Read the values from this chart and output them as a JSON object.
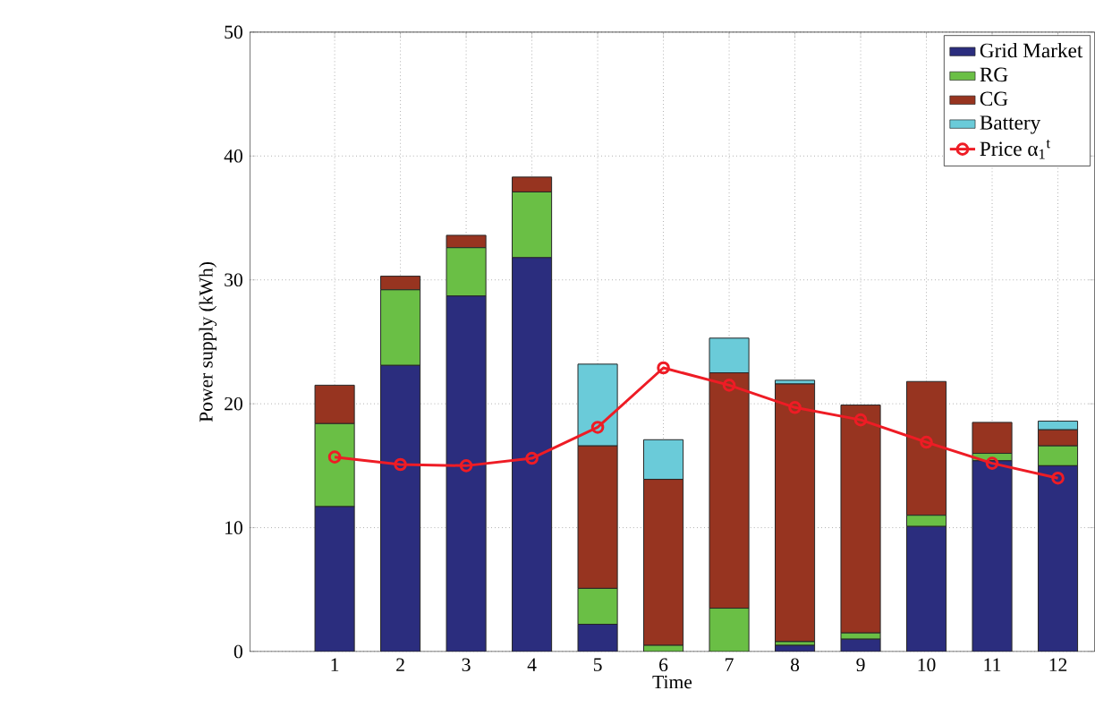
{
  "chart_data": {
    "type": "bar",
    "xlabel": "Time",
    "ylabel": "Power supply (kWh)",
    "categories": [
      "1",
      "2",
      "3",
      "4",
      "5",
      "6",
      "7",
      "8",
      "9",
      "10",
      "11",
      "12"
    ],
    "stacked": true,
    "ylim": [
      0,
      50
    ],
    "yticks": [
      0,
      10,
      20,
      30,
      40,
      50
    ],
    "grid": true,
    "legend": "top right",
    "series": [
      {
        "name": "Grid Market",
        "color": "#2b2d7e",
        "values": [
          11.7,
          23.1,
          28.7,
          31.8,
          2.2,
          0,
          0,
          0.5,
          1.0,
          10.1,
          15.4,
          15.0
        ]
      },
      {
        "name": "RG",
        "color": "#6abf45",
        "values": [
          6.7,
          6.1,
          3.9,
          5.3,
          2.9,
          0.5,
          3.5,
          0.3,
          0.5,
          0.9,
          0.6,
          1.6
        ]
      },
      {
        "name": "CG",
        "color": "#973420",
        "values": [
          3.1,
          1.1,
          1.0,
          1.2,
          11.5,
          13.4,
          19.0,
          20.8,
          18.4,
          10.8,
          2.5,
          1.3
        ]
      },
      {
        "name": "Battery",
        "color": "#6acbd9",
        "values": [
          0,
          0,
          0,
          0,
          6.6,
          3.2,
          2.8,
          0.3,
          0,
          0,
          0,
          0.7
        ]
      },
      {
        "name": "Price α$_{1}$$^{t}$",
        "type": "line",
        "color": "#ee1c25",
        "marker": "circle",
        "line_style": "solid",
        "values": [
          15.7,
          15.1,
          15.0,
          15.6,
          18.1,
          22.9,
          21.5,
          19.7,
          18.7,
          16.9,
          15.2,
          14.0
        ]
      }
    ]
  }
}
